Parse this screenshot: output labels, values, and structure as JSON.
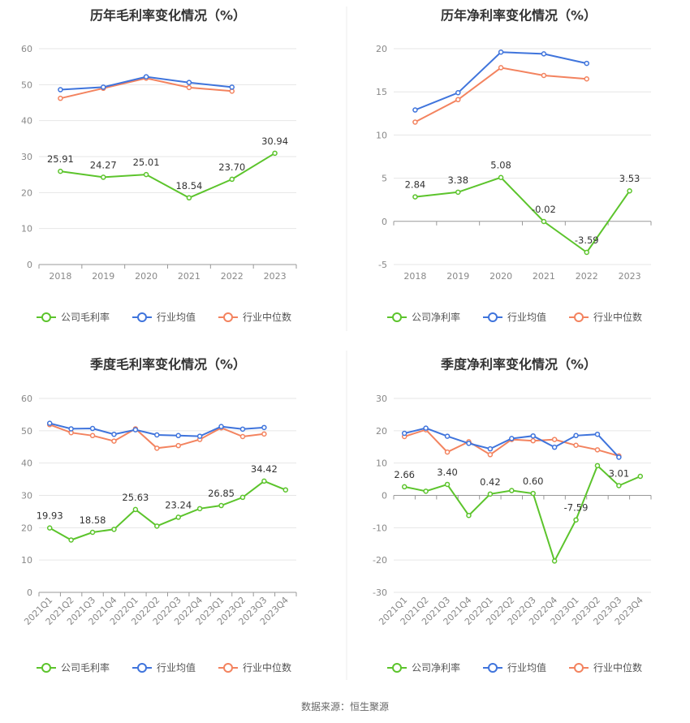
{
  "colors": {
    "company": "#5cc42c",
    "avg": "#3f74dc",
    "median": "#f3835f",
    "grid": "#e6e6e6",
    "axis": "#999999",
    "divider": "#eeeeee"
  },
  "source": "数据来源：恒生聚源",
  "chart_data": [
    {
      "type": "line",
      "title": "历年毛利率变化情况（%）",
      "categories": [
        "2018",
        "2019",
        "2020",
        "2021",
        "2022",
        "2023"
      ],
      "ylim": [
        0,
        60
      ],
      "yticks": [
        0,
        10,
        20,
        30,
        40,
        50,
        60
      ],
      "x_label_rotate": false,
      "series": [
        {
          "key": "company",
          "name": "公司毛利率",
          "values": [
            25.91,
            24.27,
            25.01,
            18.54,
            23.7,
            30.94
          ]
        },
        {
          "key": "avg",
          "name": "行业均值",
          "values": [
            48.6,
            49.3,
            52.2,
            50.6,
            49.3,
            null
          ]
        },
        {
          "key": "median",
          "name": "行业中位数",
          "values": [
            46.2,
            49.0,
            51.8,
            49.2,
            48.2,
            null
          ]
        }
      ],
      "labels": [
        {
          "i": 0,
          "text": "25.91"
        },
        {
          "i": 1,
          "text": "24.27"
        },
        {
          "i": 2,
          "text": "25.01"
        },
        {
          "i": 3,
          "text": "18.54"
        },
        {
          "i": 4,
          "text": "23.70"
        },
        {
          "i": 5,
          "text": "30.94"
        }
      ],
      "grid": true,
      "legend": "bottom"
    },
    {
      "type": "line",
      "title": "历年净利率变化情况（%）",
      "categories": [
        "2018",
        "2019",
        "2020",
        "2021",
        "2022",
        "2023"
      ],
      "ylim": [
        -5,
        20
      ],
      "yticks": [
        -5,
        0,
        5,
        10,
        15,
        20
      ],
      "x_label_rotate": false,
      "series": [
        {
          "key": "company",
          "name": "公司净利率",
          "values": [
            2.84,
            3.38,
            5.08,
            -0.02,
            -3.59,
            3.53
          ]
        },
        {
          "key": "avg",
          "name": "行业均值",
          "values": [
            12.9,
            14.9,
            19.6,
            19.4,
            18.3,
            null
          ]
        },
        {
          "key": "median",
          "name": "行业中位数",
          "values": [
            11.5,
            14.1,
            17.8,
            16.9,
            16.5,
            null
          ]
        }
      ],
      "labels": [
        {
          "i": 0,
          "text": "2.84"
        },
        {
          "i": 1,
          "text": "3.38"
        },
        {
          "i": 2,
          "text": "5.08"
        },
        {
          "i": 3,
          "text": "-0.02"
        },
        {
          "i": 4,
          "text": "-3.59"
        },
        {
          "i": 5,
          "text": "3.53"
        }
      ],
      "grid": true,
      "legend": "bottom"
    },
    {
      "type": "line",
      "title": "季度毛利率变化情况（%）",
      "categories": [
        "2021Q1",
        "2021Q2",
        "2021Q3",
        "2021Q4",
        "2022Q1",
        "2022Q2",
        "2022Q3",
        "2022Q4",
        "2023Q1",
        "2023Q2",
        "2023Q3",
        "2023Q4"
      ],
      "ylim": [
        0,
        60
      ],
      "yticks": [
        0,
        10,
        20,
        30,
        40,
        50,
        60
      ],
      "x_label_rotate": true,
      "series": [
        {
          "key": "company",
          "name": "公司毛利率",
          "values": [
            19.93,
            16.2,
            18.58,
            19.5,
            25.63,
            20.5,
            23.24,
            25.9,
            26.85,
            29.4,
            34.42,
            31.7
          ]
        },
        {
          "key": "avg",
          "name": "行业均值",
          "values": [
            52.3,
            50.6,
            50.7,
            48.9,
            50.3,
            48.7,
            48.5,
            48.3,
            51.3,
            50.5,
            51.0,
            null
          ]
        },
        {
          "key": "median",
          "name": "行业中位数",
          "values": [
            51.9,
            49.4,
            48.5,
            46.8,
            50.6,
            44.6,
            45.4,
            47.3,
            50.9,
            48.2,
            49.0,
            null
          ]
        }
      ],
      "labels": [
        {
          "i": 0,
          "text": "19.93"
        },
        {
          "i": 2,
          "text": "18.58"
        },
        {
          "i": 4,
          "text": "25.63"
        },
        {
          "i": 6,
          "text": "23.24"
        },
        {
          "i": 8,
          "text": "26.85"
        },
        {
          "i": 10,
          "text": "34.42"
        }
      ],
      "grid": true,
      "legend": "bottom"
    },
    {
      "type": "line",
      "title": "季度净利率变化情况（%）",
      "categories": [
        "2021Q1",
        "2021Q2",
        "2021Q3",
        "2021Q4",
        "2022Q1",
        "2022Q2",
        "2022Q3",
        "2022Q4",
        "2023Q1",
        "2023Q2",
        "2023Q3",
        "2023Q4"
      ],
      "ylim": [
        -30,
        30
      ],
      "yticks": [
        -30,
        -20,
        -10,
        0,
        10,
        20,
        30
      ],
      "x_label_rotate": true,
      "series": [
        {
          "key": "company",
          "name": "公司净利率",
          "values": [
            2.66,
            1.3,
            3.4,
            -6.2,
            0.42,
            1.5,
            0.6,
            -20.3,
            -7.59,
            9.2,
            3.01,
            5.9
          ]
        },
        {
          "key": "avg",
          "name": "行业均值",
          "values": [
            19.2,
            20.8,
            18.3,
            16.1,
            14.4,
            17.6,
            18.4,
            14.9,
            18.5,
            18.9,
            11.8,
            null
          ]
        },
        {
          "key": "median",
          "name": "行业中位数",
          "values": [
            18.2,
            20.3,
            13.4,
            16.6,
            12.6,
            17.3,
            16.9,
            17.3,
            15.5,
            14.1,
            12.2,
            null
          ]
        }
      ],
      "labels": [
        {
          "i": 0,
          "text": "2.66"
        },
        {
          "i": 2,
          "text": "3.40"
        },
        {
          "i": 4,
          "text": "0.42"
        },
        {
          "i": 6,
          "text": "0.60"
        },
        {
          "i": 8,
          "text": "-7.59"
        },
        {
          "i": 10,
          "text": "3.01"
        }
      ],
      "grid": true,
      "legend": "bottom"
    }
  ]
}
